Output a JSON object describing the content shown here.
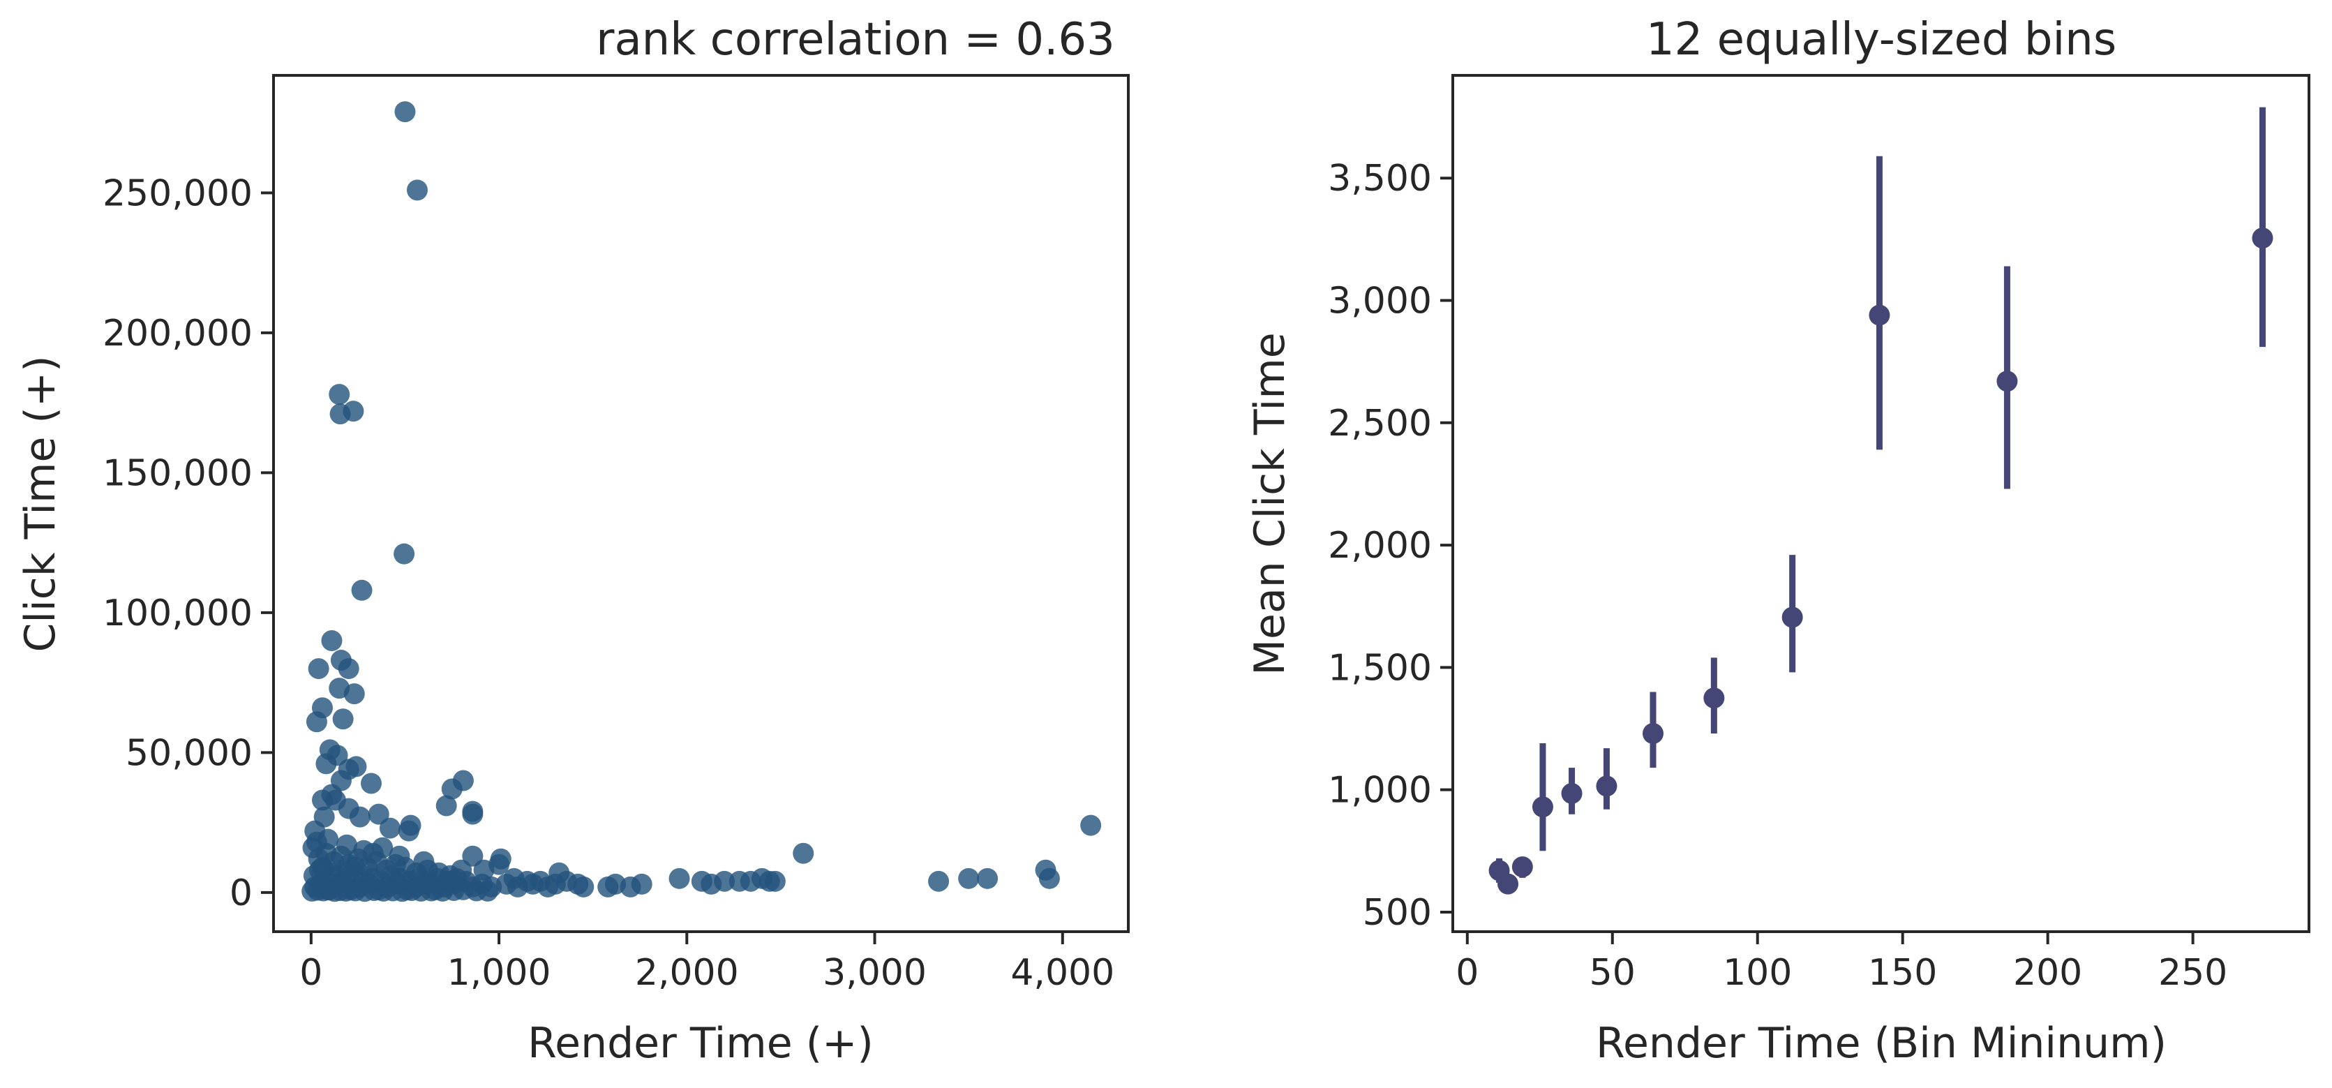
{
  "chart_data": [
    {
      "type": "scatter",
      "title": "rank correlation = 0.63",
      "xlabel": "Render Time (+)",
      "ylabel": "Click Time (+)",
      "xlim": [
        -200,
        4350
      ],
      "ylim": [
        -14000,
        292000
      ],
      "xticks": [
        0,
        1000,
        2000,
        3000,
        4000
      ],
      "xtick_labels": [
        "0",
        "1,000",
        "2,000",
        "3,000",
        "4,000"
      ],
      "yticks": [
        0,
        50000,
        100000,
        150000,
        200000,
        250000
      ],
      "ytick_labels": [
        "0",
        "50,000",
        "100,000",
        "150,000",
        "200,000",
        "250,000"
      ],
      "grid": false,
      "point_color": "#23527c",
      "points": [
        [
          500,
          279000
        ],
        [
          565,
          251000
        ],
        [
          150,
          178000
        ],
        [
          225,
          172000
        ],
        [
          155,
          171000
        ],
        [
          270,
          108000
        ],
        [
          495,
          121000
        ],
        [
          40,
          80000
        ],
        [
          110,
          90000
        ],
        [
          160,
          83000
        ],
        [
          200,
          80000
        ],
        [
          230,
          71000
        ],
        [
          150,
          73000
        ],
        [
          60,
          66000
        ],
        [
          170,
          62000
        ],
        [
          30,
          61000
        ],
        [
          100,
          51000
        ],
        [
          140,
          49000
        ],
        [
          80,
          46000
        ],
        [
          200,
          44000
        ],
        [
          240,
          45000
        ],
        [
          160,
          40000
        ],
        [
          320,
          39000
        ],
        [
          60,
          33000
        ],
        [
          130,
          33000
        ],
        [
          200,
          30000
        ],
        [
          260,
          27000
        ],
        [
          360,
          28000
        ],
        [
          420,
          23000
        ],
        [
          530,
          24000
        ],
        [
          750,
          37000
        ],
        [
          810,
          40000
        ],
        [
          860,
          29000
        ],
        [
          860,
          28000
        ],
        [
          720,
          31000
        ],
        [
          520,
          22000
        ],
        [
          20,
          22000
        ],
        [
          70,
          27000
        ],
        [
          110,
          35000
        ],
        [
          10,
          16000
        ],
        [
          40,
          12000
        ],
        [
          80,
          14000
        ],
        [
          120,
          11000
        ],
        [
          160,
          13000
        ],
        [
          200,
          10000
        ],
        [
          250,
          12000
        ],
        [
          300,
          9000
        ],
        [
          350,
          11000
        ],
        [
          400,
          8000
        ],
        [
          450,
          10000
        ],
        [
          500,
          9000
        ],
        [
          560,
          7000
        ],
        [
          620,
          8000
        ],
        [
          680,
          7000
        ],
        [
          740,
          6000
        ],
        [
          800,
          8000
        ],
        [
          860,
          13000
        ],
        [
          920,
          8000
        ],
        [
          1000,
          10000
        ],
        [
          1010,
          12000
        ],
        [
          1080,
          5000
        ],
        [
          1150,
          4000
        ],
        [
          1220,
          4000
        ],
        [
          1300,
          3000
        ],
        [
          1360,
          4000
        ],
        [
          1320,
          7000
        ],
        [
          1420,
          3000
        ],
        [
          1450,
          2000
        ],
        [
          1580,
          2000
        ],
        [
          1620,
          3000
        ],
        [
          1700,
          2000
        ],
        [
          1760,
          3000
        ],
        [
          1960,
          5000
        ],
        [
          2080,
          4000
        ],
        [
          2130,
          3000
        ],
        [
          2200,
          4000
        ],
        [
          2280,
          4000
        ],
        [
          2340,
          4000
        ],
        [
          2400,
          5000
        ],
        [
          2440,
          4000
        ],
        [
          2470,
          4000
        ],
        [
          2620,
          14000
        ],
        [
          3340,
          4000
        ],
        [
          3500,
          5000
        ],
        [
          3600,
          5000
        ],
        [
          3910,
          8000
        ],
        [
          3930,
          5000
        ],
        [
          4150,
          24000
        ],
        [
          20,
          2000
        ],
        [
          50,
          3000
        ],
        [
          90,
          1000
        ],
        [
          130,
          2000
        ],
        [
          170,
          3000
        ],
        [
          210,
          1000
        ],
        [
          260,
          2000
        ],
        [
          310,
          3000
        ],
        [
          360,
          1000
        ],
        [
          410,
          2000
        ],
        [
          460,
          3000
        ],
        [
          510,
          1000
        ],
        [
          560,
          2000
        ],
        [
          610,
          3000
        ],
        [
          660,
          1000
        ],
        [
          710,
          2000
        ],
        [
          760,
          3000
        ],
        [
          810,
          1000
        ],
        [
          860,
          2000
        ],
        [
          910,
          3000
        ],
        [
          960,
          2000
        ],
        [
          1040,
          3000
        ],
        [
          1100,
          2000
        ],
        [
          1180,
          3000
        ],
        [
          1260,
          2000
        ],
        [
          15,
          6000
        ],
        [
          45,
          8000
        ],
        [
          75,
          5000
        ],
        [
          105,
          7000
        ],
        [
          135,
          6000
        ],
        [
          165,
          4000
        ],
        [
          195,
          7000
        ],
        [
          225,
          5000
        ],
        [
          275,
          6000
        ],
        [
          325,
          5000
        ],
        [
          375,
          4000
        ],
        [
          425,
          6000
        ],
        [
          475,
          5000
        ],
        [
          525,
          4000
        ],
        [
          575,
          5000
        ],
        [
          625,
          4000
        ],
        [
          675,
          5000
        ],
        [
          725,
          4000
        ],
        [
          775,
          5000
        ],
        [
          825,
          4000
        ],
        [
          5,
          500
        ],
        [
          35,
          800
        ],
        [
          65,
          600
        ],
        [
          95,
          900
        ],
        [
          125,
          400
        ],
        [
          155,
          700
        ],
        [
          185,
          500
        ],
        [
          235,
          600
        ],
        [
          285,
          400
        ],
        [
          335,
          700
        ],
        [
          385,
          500
        ],
        [
          435,
          600
        ],
        [
          485,
          400
        ],
        [
          535,
          700
        ],
        [
          585,
          500
        ],
        [
          640,
          600
        ],
        [
          700,
          500
        ],
        [
          760,
          700
        ],
        [
          880,
          600
        ],
        [
          940,
          500
        ],
        [
          30,
          18000
        ],
        [
          90,
          19000
        ],
        [
          190,
          17000
        ],
        [
          280,
          15000
        ],
        [
          380,
          16000
        ],
        [
          60,
          9000
        ],
        [
          230,
          9000
        ],
        [
          330,
          14000
        ],
        [
          470,
          13000
        ],
        [
          600,
          11000
        ]
      ]
    },
    {
      "type": "scatter",
      "title": "12 equally-sized bins",
      "xlabel": "Render Time (Bin Mininum)",
      "ylabel": "Mean Click Time",
      "xlim": [
        -5,
        290
      ],
      "ylim": [
        420,
        3920
      ],
      "xticks": [
        0,
        50,
        100,
        150,
        200,
        250
      ],
      "xtick_labels": [
        "0",
        "50",
        "100",
        "150",
        "200",
        "250"
      ],
      "yticks": [
        500,
        1000,
        1500,
        2000,
        2500,
        3000,
        3500
      ],
      "ytick_labels": [
        "500",
        "1,000",
        "1,500",
        "2,000",
        "2,500",
        "3,000",
        "3,500"
      ],
      "grid": false,
      "point_color": "#444775",
      "points": [
        {
          "x": 11,
          "y": 670,
          "low": 620,
          "high": 720
        },
        {
          "x": 14,
          "y": 615,
          "low": 590,
          "high": 650
        },
        {
          "x": 19,
          "y": 685,
          "low": 640,
          "high": 720
        },
        {
          "x": 26,
          "y": 930,
          "low": 750,
          "high": 1190
        },
        {
          "x": 36,
          "y": 985,
          "low": 900,
          "high": 1090
        },
        {
          "x": 48,
          "y": 1015,
          "low": 920,
          "high": 1170
        },
        {
          "x": 64,
          "y": 1230,
          "low": 1090,
          "high": 1400
        },
        {
          "x": 85,
          "y": 1375,
          "low": 1230,
          "high": 1540
        },
        {
          "x": 112,
          "y": 1705,
          "low": 1480,
          "high": 1960
        },
        {
          "x": 142,
          "y": 2940,
          "low": 2390,
          "high": 3590
        },
        {
          "x": 186,
          "y": 2670,
          "low": 2230,
          "high": 3140
        },
        {
          "x": 274,
          "y": 3255,
          "low": 2810,
          "high": 3790
        }
      ]
    }
  ]
}
